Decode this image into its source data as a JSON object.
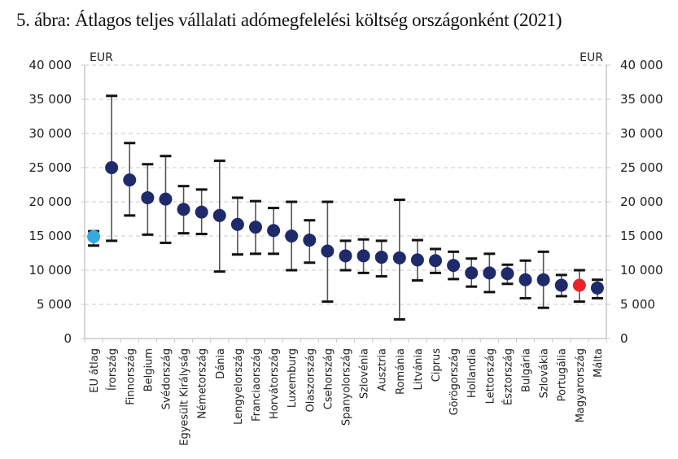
{
  "title": "5. ábra: Átlagos teljes vállalati adómegfelelési költség országonként (2021)",
  "chart_data": {
    "type": "scatter",
    "subtype": "dot-with-error-bars",
    "title": "5. ábra: Átlagos teljes vállalati adómegfelelési költség országonként (2021)",
    "xlabel": "",
    "ylabel_left": "EUR",
    "ylabel_right": "EUR",
    "ylim": [
      0,
      40000
    ],
    "yticks": [
      0,
      5000,
      10000,
      15000,
      20000,
      25000,
      30000,
      35000,
      40000
    ],
    "ytick_labels": [
      "0",
      "5 000",
      "10 000",
      "15 000",
      "20 000",
      "25 000",
      "30 000",
      "35 000",
      "40 000"
    ],
    "grid": "horizontal-dashed",
    "colors": {
      "default": "#1f2a6b",
      "eu_average": "#35a9e1",
      "highlight": "#e8232a",
      "error_bar": "#555555",
      "grid": "#c8c8c8",
      "axis": "#c8c8c8"
    },
    "points": [
      {
        "category": "EU átlag",
        "value": 14900,
        "low": 13600,
        "high": 15700,
        "style": "eu_average"
      },
      {
        "category": "Írország",
        "value": 25000,
        "low": 14300,
        "high": 35500,
        "style": "default"
      },
      {
        "category": "Finnország",
        "value": 23200,
        "low": 18000,
        "high": 28600,
        "style": "default"
      },
      {
        "category": "Belgium",
        "value": 20600,
        "low": 15200,
        "high": 25500,
        "style": "default"
      },
      {
        "category": "Svédország",
        "value": 20400,
        "low": 14000,
        "high": 26700,
        "style": "default"
      },
      {
        "category": "Egyesült Királyság",
        "value": 18900,
        "low": 15400,
        "high": 22300,
        "style": "default"
      },
      {
        "category": "Németország",
        "value": 18500,
        "low": 15300,
        "high": 21800,
        "style": "default"
      },
      {
        "category": "Dánia",
        "value": 18000,
        "low": 9800,
        "high": 26000,
        "style": "default"
      },
      {
        "category": "Lengyelország",
        "value": 16700,
        "low": 12300,
        "high": 20600,
        "style": "default"
      },
      {
        "category": "Franciaország",
        "value": 16300,
        "low": 12400,
        "high": 20100,
        "style": "default"
      },
      {
        "category": "Horvátország",
        "value": 15800,
        "low": 12400,
        "high": 19100,
        "style": "default"
      },
      {
        "category": "Luxemburg",
        "value": 15000,
        "low": 10000,
        "high": 20000,
        "style": "default"
      },
      {
        "category": "Olaszország",
        "value": 14400,
        "low": 11100,
        "high": 17300,
        "style": "default"
      },
      {
        "category": "Csehország",
        "value": 12800,
        "low": 5400,
        "high": 20000,
        "style": "default"
      },
      {
        "category": "Spanyolország",
        "value": 12100,
        "low": 10000,
        "high": 14300,
        "style": "default"
      },
      {
        "category": "Szlovénia",
        "value": 12100,
        "low": 9600,
        "high": 14500,
        "style": "default"
      },
      {
        "category": "Ausztria",
        "value": 11900,
        "low": 9100,
        "high": 14300,
        "style": "default"
      },
      {
        "category": "Románia",
        "value": 11800,
        "low": 2800,
        "high": 20300,
        "style": "default"
      },
      {
        "category": "Litvánia",
        "value": 11500,
        "low": 8500,
        "high": 14400,
        "style": "default"
      },
      {
        "category": "Ciprus",
        "value": 11400,
        "low": 9600,
        "high": 13100,
        "style": "default"
      },
      {
        "category": "Görögország",
        "value": 10700,
        "low": 8700,
        "high": 12700,
        "style": "default"
      },
      {
        "category": "Hollandia",
        "value": 9600,
        "low": 7600,
        "high": 11700,
        "style": "default"
      },
      {
        "category": "Lettország",
        "value": 9600,
        "low": 6800,
        "high": 12400,
        "style": "default"
      },
      {
        "category": "Észtország",
        "value": 9500,
        "low": 8000,
        "high": 10800,
        "style": "default"
      },
      {
        "category": "Bulgária",
        "value": 8600,
        "low": 5900,
        "high": 11400,
        "style": "default"
      },
      {
        "category": "Szlovákia",
        "value": 8600,
        "low": 4500,
        "high": 12700,
        "style": "default"
      },
      {
        "category": "Portugália",
        "value": 7800,
        "low": 6200,
        "high": 9300,
        "style": "default"
      },
      {
        "category": "Magyarország",
        "value": 7800,
        "low": 5400,
        "high": 10000,
        "style": "highlight"
      },
      {
        "category": "Málta",
        "value": 7400,
        "low": 5900,
        "high": 8600,
        "style": "default"
      }
    ]
  }
}
